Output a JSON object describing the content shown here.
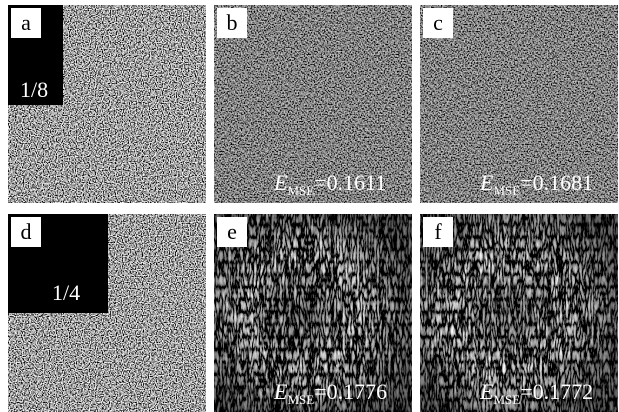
{
  "panels": [
    {
      "label": "a",
      "fraction": "1/8"
    },
    {
      "label": "b",
      "mse": {
        "symbol": "E",
        "subscript": "MSE",
        "value": "=0.1611"
      }
    },
    {
      "label": "c",
      "mse": {
        "symbol": "E",
        "subscript": "MSE",
        "value": "=0.1681"
      }
    },
    {
      "label": "d",
      "fraction": "1/4"
    },
    {
      "label": "e",
      "mse": {
        "symbol": "E",
        "subscript": "MSE",
        "value": "=0.1776"
      }
    },
    {
      "label": "f",
      "mse": {
        "symbol": "E",
        "subscript": "MSE",
        "value": "=0.1772"
      }
    }
  ]
}
